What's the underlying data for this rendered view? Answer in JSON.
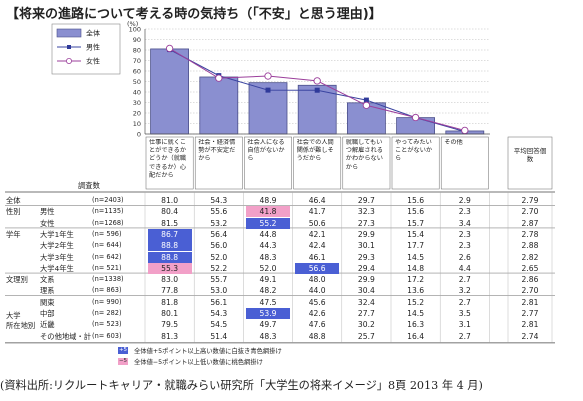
{
  "title": "【将来の進路について考える時の気持ち（「不安」と思う理由)】",
  "chart_data": {
    "type": "bar",
    "yunit": "(%)",
    "ylim": [
      0,
      100
    ],
    "yticks": [
      "0",
      "10",
      "20",
      "30",
      "40",
      "50",
      "60",
      "70",
      "80",
      "90",
      "100"
    ],
    "categories": [
      "仕事に就くことができるかどうか（就職できるか）心配だから",
      "社会・経済情勢が不安定だから",
      "社会人になる自信がないから",
      "社会での人間関係が難しそうだから",
      "就職してもいつ解雇されるかわからないから",
      "やってみたいことがないから",
      "その他"
    ],
    "series": [
      {
        "name": "全体",
        "kind": "bar",
        "color": "#8a8fd0",
        "values": [
          81.0,
          54.3,
          48.9,
          46.4,
          29.7,
          15.6,
          2.9
        ]
      },
      {
        "name": "男性",
        "kind": "line",
        "marker": "square",
        "color": "#3a44a0",
        "values": [
          80.4,
          55.6,
          41.8,
          41.7,
          32.3,
          15.6,
          2.3
        ]
      },
      {
        "name": "女性",
        "kind": "line",
        "marker": "circle",
        "color": "#9b3f9b",
        "values": [
          81.5,
          53.2,
          55.2,
          50.6,
          27.3,
          15.7,
          3.4
        ]
      }
    ],
    "extra_col_header": "平均回答個数",
    "table_header": "調査数",
    "table": [
      {
        "group": "",
        "label": "全体",
        "n": "(n=2403)",
        "values": [
          "81.0",
          "54.3",
          "48.9",
          "46.4",
          "29.7",
          "15.6",
          "2.9"
        ],
        "avg": "2.79",
        "hl": [
          "",
          "",
          "",
          "",
          "",
          "",
          ""
        ]
      },
      {
        "group": "性別",
        "label": "男性",
        "n": "(n=1135)",
        "values": [
          "80.4",
          "55.6",
          "41.8",
          "41.7",
          "32.3",
          "15.6",
          "2.3"
        ],
        "avg": "2.70",
        "hl": [
          "",
          "",
          "pink",
          "",
          "",
          "",
          ""
        ]
      },
      {
        "group": "",
        "label": "女性",
        "n": "(n=1268)",
        "values": [
          "81.5",
          "53.2",
          "55.2",
          "50.6",
          "27.3",
          "15.7",
          "3.4"
        ],
        "avg": "2.87",
        "hl": [
          "",
          "",
          "blue",
          "",
          "",
          "",
          ""
        ]
      },
      {
        "group": "学年",
        "label": "大学1年生",
        "n": "(n= 596)",
        "values": [
          "86.7",
          "56.4",
          "44.8",
          "42.1",
          "29.9",
          "15.4",
          "2.3"
        ],
        "avg": "2.78",
        "hl": [
          "blue",
          "",
          "",
          "",
          "",
          "",
          ""
        ]
      },
      {
        "group": "",
        "label": "大学2年生",
        "n": "(n= 644)",
        "values": [
          "88.8",
          "56.0",
          "44.3",
          "42.4",
          "30.1",
          "17.7",
          "2.3"
        ],
        "avg": "2.88",
        "hl": [
          "blue",
          "",
          "",
          "",
          "",
          "",
          ""
        ]
      },
      {
        "group": "",
        "label": "大学3年生",
        "n": "(n= 642)",
        "values": [
          "88.8",
          "52.0",
          "48.3",
          "46.1",
          "29.3",
          "14.5",
          "2.6"
        ],
        "avg": "2.82",
        "hl": [
          "blue",
          "",
          "",
          "",
          "",
          "",
          ""
        ]
      },
      {
        "group": "",
        "label": "大学4年生",
        "n": "(n= 521)",
        "values": [
          "55.3",
          "52.2",
          "52.0",
          "56.6",
          "29.4",
          "14.8",
          "4.4"
        ],
        "avg": "2.65",
        "hl": [
          "pink",
          "",
          "",
          "blue",
          "",
          "",
          ""
        ]
      },
      {
        "group": "文理別",
        "label": "文系",
        "n": "(n=1338)",
        "values": [
          "83.0",
          "55.7",
          "49.1",
          "48.0",
          "29.9",
          "17.2",
          "2.7"
        ],
        "avg": "2.86",
        "hl": [
          "",
          "",
          "",
          "",
          "",
          "",
          ""
        ]
      },
      {
        "group": "",
        "label": "理系",
        "n": "(n= 863)",
        "values": [
          "77.8",
          "53.0",
          "48.2",
          "44.0",
          "30.4",
          "13.6",
          "3.2"
        ],
        "avg": "2.70",
        "hl": [
          "",
          "",
          "",
          "",
          "",
          "",
          ""
        ]
      },
      {
        "group": "大学所在地別",
        "label": "関東",
        "n": "(n= 990)",
        "values": [
          "81.8",
          "56.1",
          "47.5",
          "45.6",
          "32.4",
          "15.2",
          "2.7"
        ],
        "avg": "2.81",
        "hl": [
          "",
          "",
          "",
          "",
          "",
          "",
          ""
        ]
      },
      {
        "group": "",
        "label": "中部",
        "n": "(n= 282)",
        "values": [
          "80.1",
          "54.3",
          "53.9",
          "42.6",
          "27.7",
          "14.5",
          "3.5"
        ],
        "avg": "2.77",
        "hl": [
          "",
          "",
          "blue",
          "",
          "",
          "",
          ""
        ]
      },
      {
        "group": "",
        "label": "近畿",
        "n": "(n= 523)",
        "values": [
          "79.5",
          "54.5",
          "49.7",
          "47.6",
          "30.2",
          "16.3",
          "3.1"
        ],
        "avg": "2.81",
        "hl": [
          "",
          "",
          "",
          "",
          "",
          "",
          ""
        ]
      },
      {
        "group": "",
        "label": "その他地域・計",
        "n": "(n= 603)",
        "values": [
          "81.3",
          "51.4",
          "48.3",
          "48.8",
          "25.7",
          "16.4",
          "2.7"
        ],
        "avg": "2.74",
        "hl": [
          "",
          "",
          "",
          "",
          "",
          "",
          ""
        ]
      }
    ],
    "highlight_legend": [
      {
        "mark": "+5",
        "color": "#4a5fd4",
        "text": "全体値+5ポイント以上高い数値に白抜き青色網掛け"
      },
      {
        "mark": "−5",
        "color": "#f2a0c8",
        "text": "全体値−5ポイント以上低い数値に桃色網掛け"
      }
    ]
  },
  "source": "(資料出所:リクルートキャリア・就職みらい研究所「大学生の将来イメージ」8頁 2013 年 4 月)"
}
